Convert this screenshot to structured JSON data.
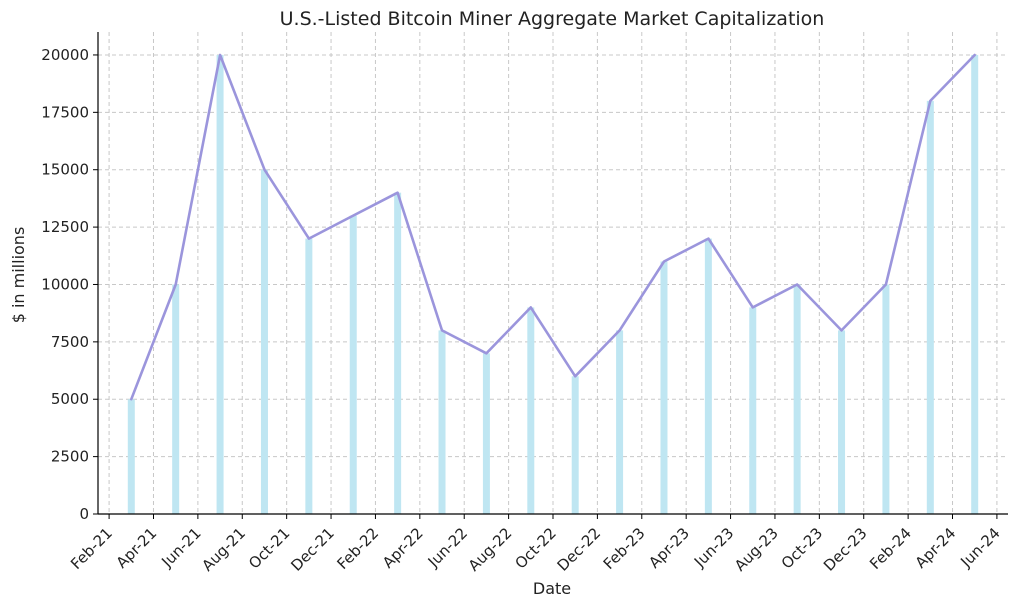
{
  "chart_data": {
    "type": "bar+line",
    "title": "U.S.-Listed Bitcoin Miner Aggregate Market Capitalization",
    "xlabel": "Date",
    "ylabel": "$ in millions",
    "ylim": [
      0,
      21000
    ],
    "yticks": [
      0,
      2500,
      5000,
      7500,
      10000,
      12500,
      15000,
      17500,
      20000
    ],
    "xticks": [
      "Feb-21",
      "Apr-21",
      "Jun-21",
      "Aug-21",
      "Oct-21",
      "Dec-21",
      "Feb-22",
      "Apr-22",
      "Jun-22",
      "Aug-22",
      "Oct-22",
      "Dec-22",
      "Feb-23",
      "Apr-23",
      "Jun-23",
      "Aug-23",
      "Oct-23",
      "Dec-23",
      "Feb-24",
      "Apr-24",
      "Jun-24"
    ],
    "x": [
      "Mar-21",
      "May-21",
      "Jul-21",
      "Sep-21",
      "Nov-21",
      "Jan-22",
      "Mar-22",
      "May-22",
      "Jul-22",
      "Sep-22",
      "Nov-22",
      "Jan-23",
      "Mar-23",
      "May-23",
      "Jul-23",
      "Sep-23",
      "Nov-23",
      "Jan-24",
      "Mar-24",
      "May-24"
    ],
    "values": [
      5000,
      10000,
      20000,
      15000,
      12000,
      13000,
      14000,
      8000,
      7000,
      9000,
      6000,
      8000,
      11000,
      12000,
      9000,
      10000,
      8000,
      10000,
      18000,
      20000
    ],
    "grid": true,
    "colors": {
      "bar": "#bfe6f2",
      "line": "#9b95dc"
    }
  }
}
